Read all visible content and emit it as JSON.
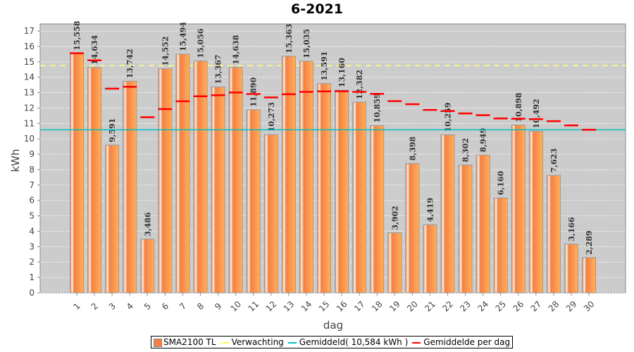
{
  "chart_data": {
    "type": "bar",
    "title": "6-2021",
    "xlabel": "dag",
    "ylabel": "kWh",
    "ylim": [
      0,
      17.46
    ],
    "yticks": [
      0,
      1,
      2,
      3,
      4,
      5,
      6,
      7,
      8,
      9,
      10,
      11,
      12,
      13,
      14,
      15,
      16,
      17
    ],
    "categories": [
      "1",
      "2",
      "3",
      "4",
      "5",
      "6",
      "7",
      "8",
      "9",
      "10",
      "11",
      "12",
      "13",
      "14",
      "15",
      "16",
      "17",
      "18",
      "19",
      "20",
      "21",
      "22",
      "23",
      "24",
      "25",
      "26",
      "27",
      "28",
      "29",
      "30"
    ],
    "values": [
      15.558,
      14.634,
      9.591,
      13.742,
      3.486,
      14.552,
      15.494,
      15.056,
      13.367,
      14.638,
      11.89,
      10.273,
      15.363,
      15.035,
      13.591,
      13.16,
      12.382,
      10.859,
      3.902,
      8.398,
      4.419,
      10.259,
      8.302,
      8.949,
      6.16,
      10.898,
      10.492,
      7.623,
      3.166,
      2.289
    ],
    "value_labels": [
      "15,558",
      "14,634",
      "9,591",
      "13,742",
      "3,486",
      "14,552",
      "15,494",
      "15,056",
      "13,367",
      "14,638",
      "11,890",
      "10,273",
      "15,363",
      "15,035",
      "13,591",
      "13,160",
      "12,382",
      "10,859",
      "3,902",
      "8,398",
      "4,419",
      "10,259",
      "8,302",
      "8,949",
      "6,160",
      "10,898",
      "10,492",
      "7,623",
      "3,166",
      "2,289"
    ],
    "expected": 14.75,
    "average": 10.584,
    "legend": {
      "position": "bottom",
      "items": [
        "SMA2100 TL",
        "Verwachting",
        "Gemiddeld( 10,584 kWh )",
        "Gemiddelde per dag"
      ]
    },
    "colors": {
      "bar": "#f58040",
      "expected": "#ffff80",
      "average": "#00c0c0",
      "running": "#ff0000"
    }
  }
}
